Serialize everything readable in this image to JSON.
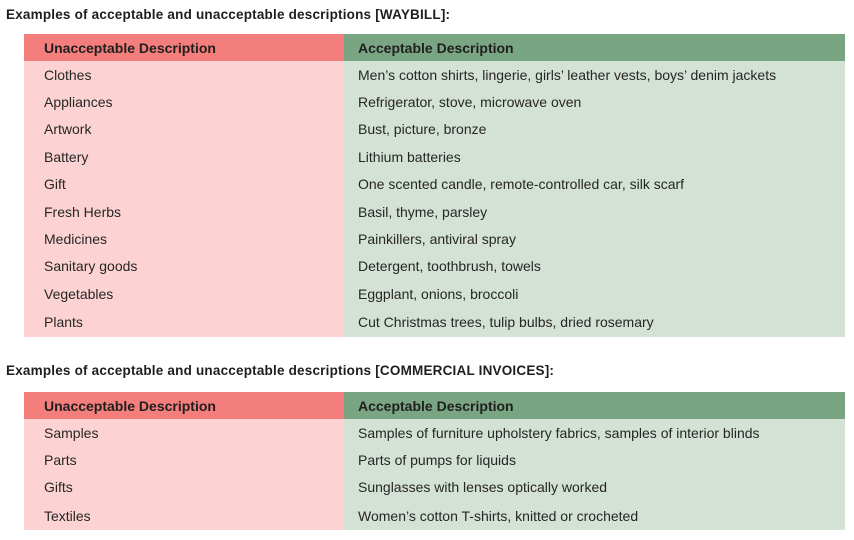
{
  "waybill": {
    "title": "Examples of acceptable and unacceptable descriptions [WAYBILL]:",
    "header": {
      "unacceptable": "Unacceptable Description",
      "acceptable": "Acceptable Description"
    },
    "rows": [
      {
        "unacceptable": "Clothes",
        "acceptable": "Men’s cotton shirts, lingerie, girls’ leather vests, boys’ denim jackets"
      },
      {
        "unacceptable": "Appliances",
        "acceptable": "Refrigerator, stove, microwave oven"
      },
      {
        "unacceptable": "Artwork",
        "acceptable": "Bust, picture, bronze"
      },
      {
        "unacceptable": "Battery",
        "acceptable": "Lithium batteries"
      },
      {
        "unacceptable": "Gift",
        "acceptable": "One scented candle, remote-controlled car, silk scarf"
      },
      {
        "unacceptable": "Fresh Herbs",
        "acceptable": "Basil, thyme, parsley"
      },
      {
        "unacceptable": "Medicines",
        "acceptable": "Painkillers, antiviral spray"
      },
      {
        "unacceptable": "Sanitary goods",
        "acceptable": "Detergent, toothbrush, towels"
      },
      {
        "unacceptable": "Vegetables",
        "acceptable": "Eggplant, onions, broccoli"
      },
      {
        "unacceptable": "Plants",
        "acceptable": "Cut Christmas trees, tulip bulbs, dried rosemary"
      }
    ]
  },
  "invoice": {
    "title": "Examples of acceptable and unacceptable descriptions [COMMERCIAL INVOICES]:",
    "header": {
      "unacceptable": "Unacceptable Description",
      "acceptable": "Acceptable Description"
    },
    "rows": [
      {
        "unacceptable": "Samples",
        "acceptable": "Samples of furniture upholstery fabrics, samples of interior blinds"
      },
      {
        "unacceptable": "Parts",
        "acceptable": "Parts of pumps for liquids"
      },
      {
        "unacceptable": "Gifts",
        "acceptable": "Sunglasses with lenses optically worked"
      },
      {
        "unacceptable": "Textiles",
        "acceptable": "Women’s cotton T-shirts, knitted or crocheted"
      }
    ]
  },
  "colors": {
    "unacceptable_header": "#f47e7b",
    "unacceptable_cell": "#fcd3d2",
    "acceptable_header": "#7aa582",
    "acceptable_cell": "#d4e1d5"
  }
}
